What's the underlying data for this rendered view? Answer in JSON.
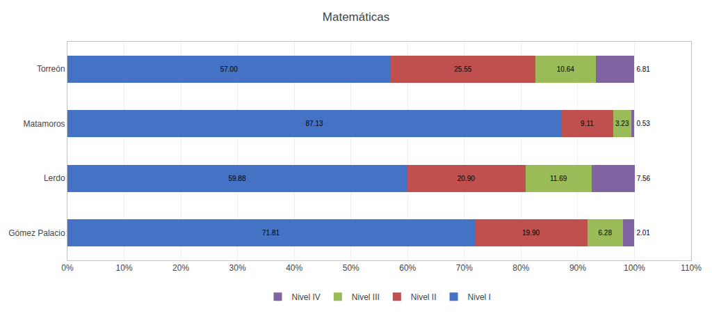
{
  "chart_data": {
    "type": "bar",
    "orientation": "horizontal",
    "stacked": true,
    "title": "Matemáticas",
    "categories": [
      "Gómez Palacio",
      "Lerdo",
      "Matamoros",
      "Torreón"
    ],
    "series": [
      {
        "name": "Nivel I",
        "color": "#4472C4",
        "values": [
          71.81,
          59.88,
          87.13,
          57.0
        ],
        "value_labels": [
          "71.81",
          "59.88",
          "87.13",
          "57.00"
        ]
      },
      {
        "name": "Nivel II",
        "color": "#C0504D",
        "values": [
          19.9,
          20.9,
          9.11,
          25.55
        ],
        "value_labels": [
          "19.90",
          "20.90",
          "9.11",
          "25.55"
        ]
      },
      {
        "name": "Nivel III",
        "color": "#9BBB59",
        "values": [
          6.28,
          11.69,
          3.23,
          10.64
        ],
        "value_labels": [
          "6.28",
          "11.69",
          "3.23",
          "10.64"
        ]
      },
      {
        "name": "Nivel IV",
        "color": "#8064A2",
        "values": [
          2.01,
          7.56,
          0.53,
          6.81
        ],
        "value_labels": [
          "2.01",
          "7.56",
          "0.53",
          "6.81"
        ]
      }
    ],
    "xlim": [
      0,
      110
    ],
    "xticks": [
      {
        "value": 0,
        "label": "0%"
      },
      {
        "value": 10,
        "label": "10%"
      },
      {
        "value": 20,
        "label": "20%"
      },
      {
        "value": 30,
        "label": "30%"
      },
      {
        "value": 40,
        "label": "40%"
      },
      {
        "value": 50,
        "label": "50%"
      },
      {
        "value": 60,
        "label": "60%"
      },
      {
        "value": 70,
        "label": "70%"
      },
      {
        "value": 80,
        "label": "80%"
      },
      {
        "value": 90,
        "label": "90%"
      },
      {
        "value": 100,
        "label": "100%"
      },
      {
        "value": 110,
        "label": "110%"
      }
    ],
    "grid": true,
    "data_labels": true,
    "legend": "bottom"
  }
}
